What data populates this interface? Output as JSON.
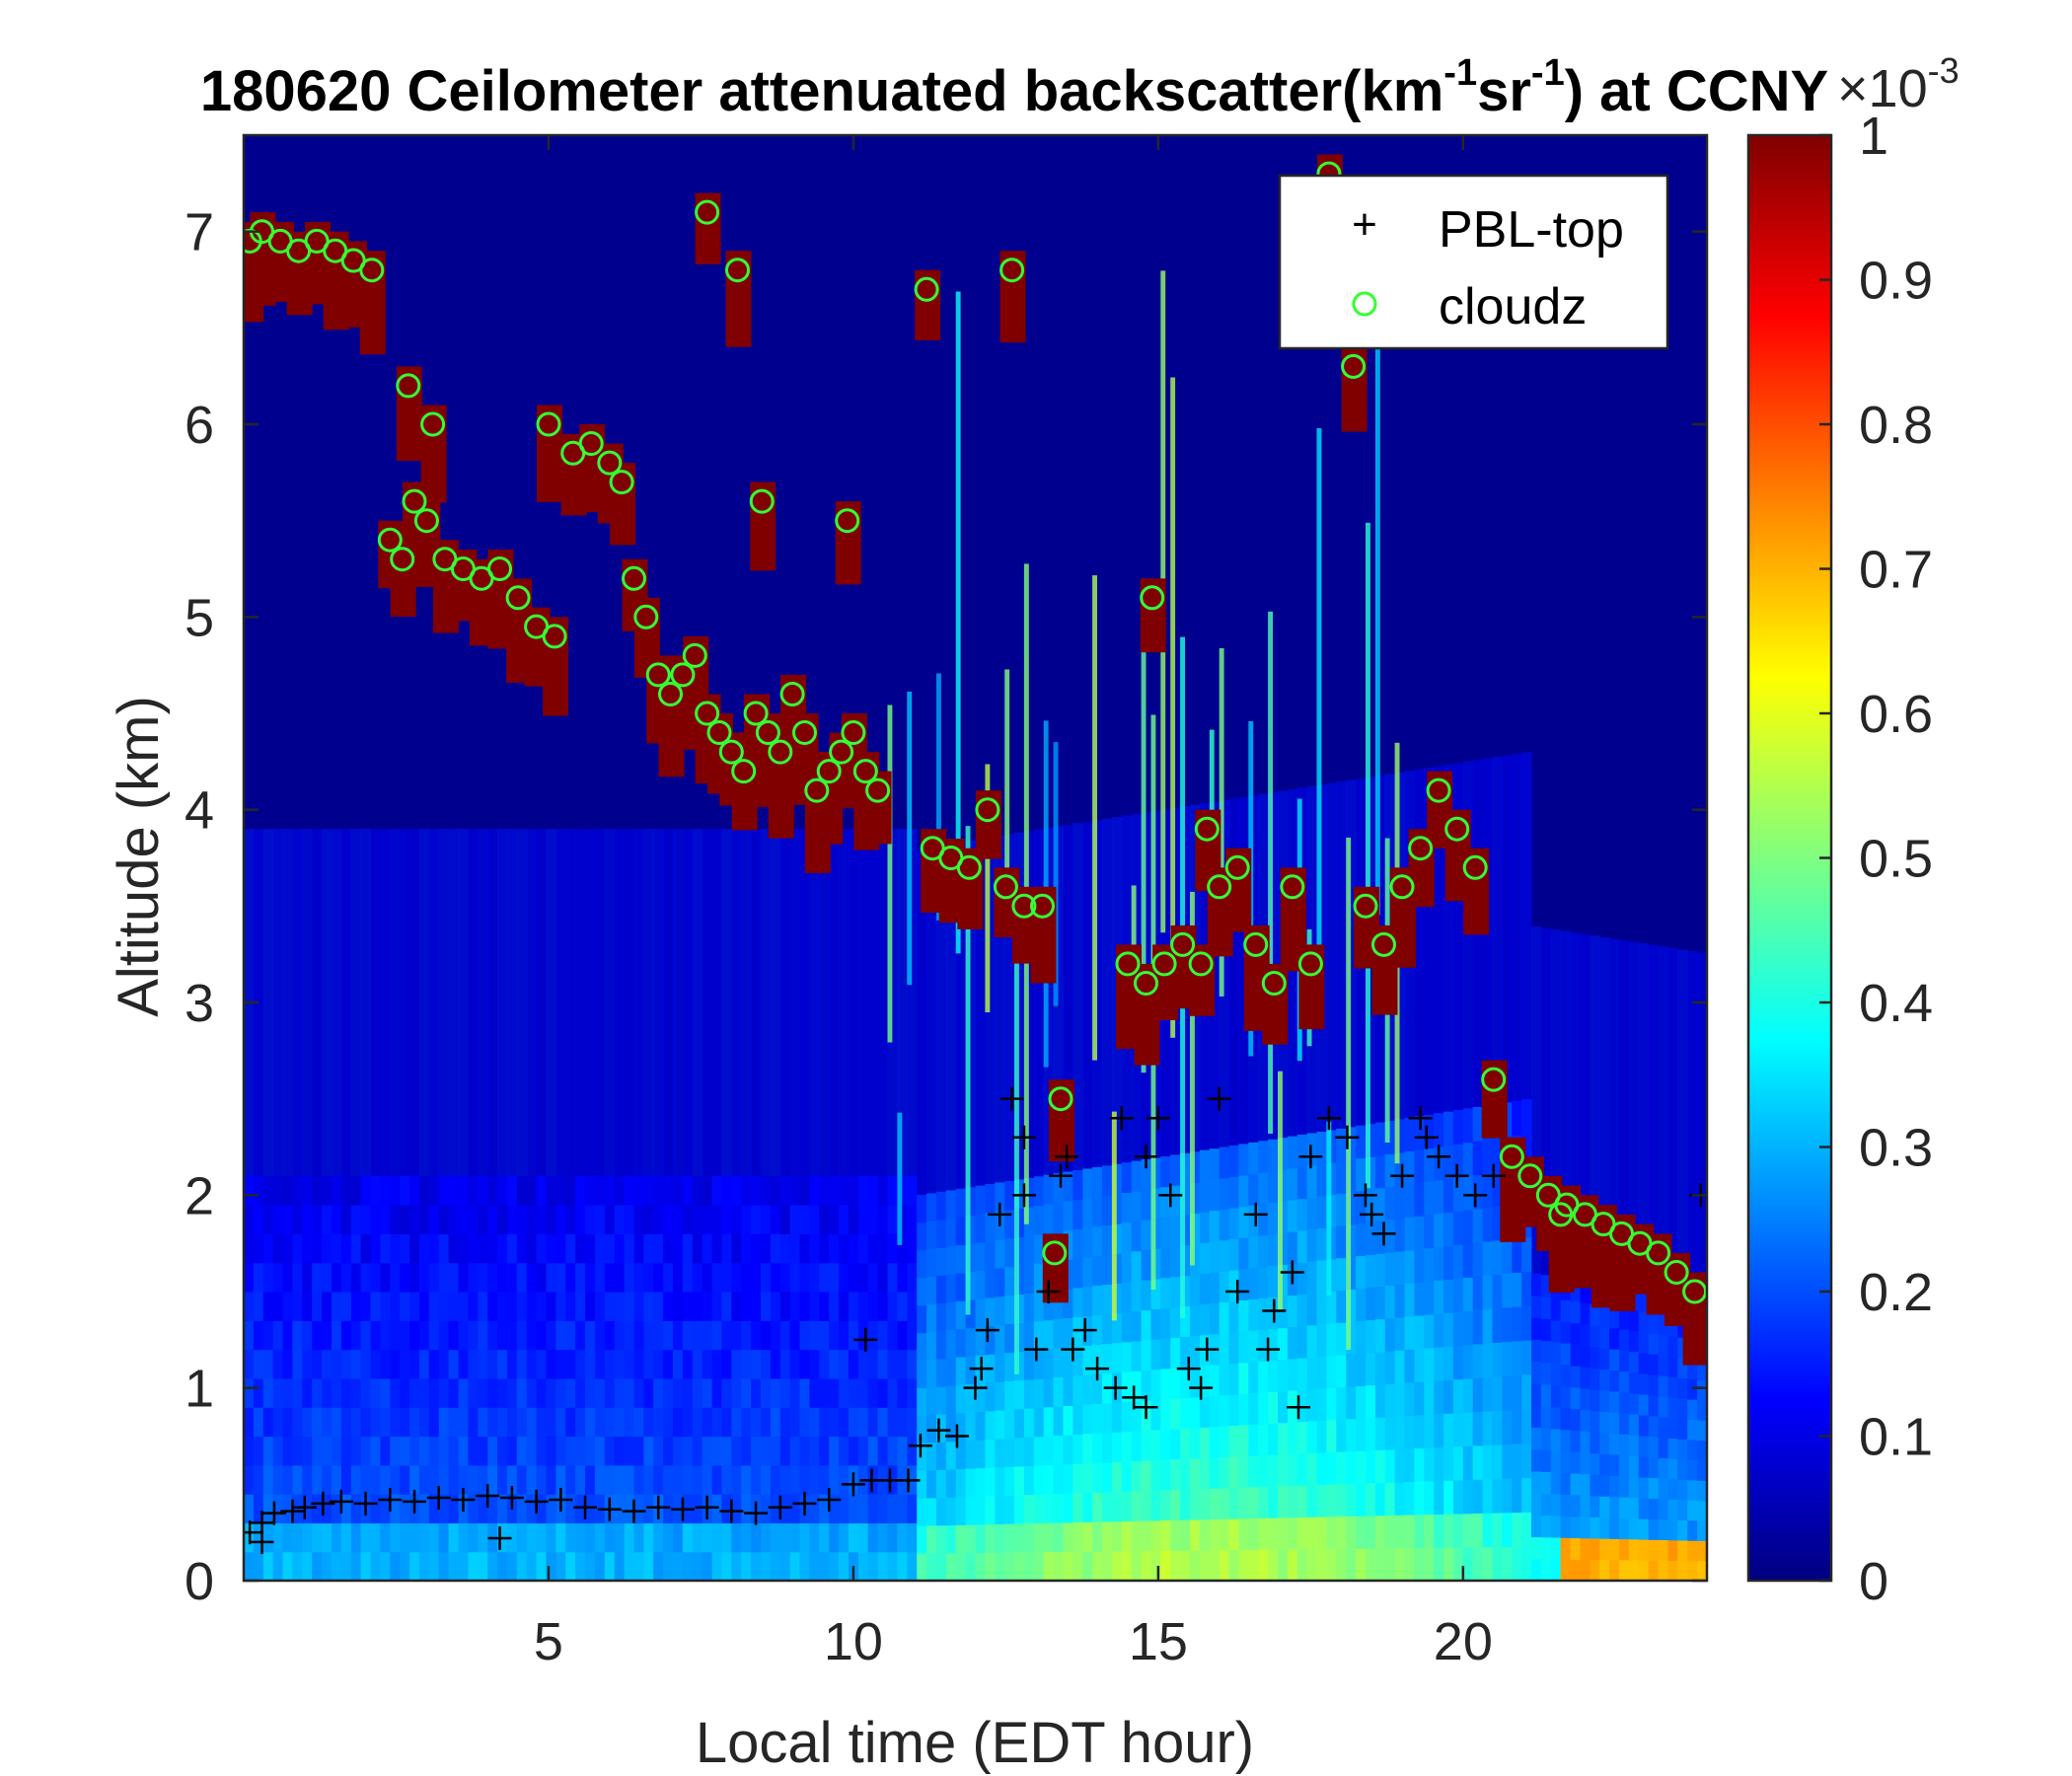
{
  "chart_data": {
    "type": "heatmap",
    "title": "180620 Ceilometer attenuated backscatter(km-1sr-1) at CCNY",
    "title_parts": {
      "main": "180620 Ceilometer attenuated backscatter(km",
      "sup1": "-1",
      "mid": "sr",
      "sup2": "-1",
      "tail": ") at CCNY"
    },
    "xlabel": "Local time (EDT hour)",
    "ylabel": "Altitude (km)",
    "xlim": [
      0,
      24
    ],
    "ylim": [
      0,
      7.5
    ],
    "xticks": [
      5,
      10,
      15,
      20
    ],
    "yticks": [
      0,
      1,
      2,
      3,
      4,
      5,
      6,
      7
    ],
    "colorbar": {
      "colormap": "jet",
      "clim": [
        0,
        1
      ],
      "ticks": [
        0,
        0.1,
        0.2,
        0.3,
        0.4,
        0.5,
        0.6,
        0.7,
        0.8,
        0.9,
        1
      ],
      "exponent_label": "×10",
      "exponent": "-3"
    },
    "legend": {
      "placement": "top-right",
      "entries": [
        {
          "label": "PBL-top",
          "marker": "+",
          "color": "#000000"
        },
        {
          "label": "cloudz",
          "marker": "o",
          "color": "#33ff33"
        }
      ]
    },
    "series": [
      {
        "name": "PBL-top",
        "x": [
          0.1,
          0.3,
          0.5,
          0.8,
          1.0,
          1.3,
          1.6,
          2.0,
          2.4,
          2.8,
          3.2,
          3.6,
          4.0,
          4.4,
          4.8,
          5.2,
          5.6,
          6.0,
          6.4,
          6.8,
          7.2,
          7.6,
          8.0,
          8.4,
          8.8,
          9.2,
          9.6,
          10.0,
          10.3,
          10.6,
          10.9,
          11.1,
          11.4,
          11.7,
          12.0,
          12.2,
          12.4,
          12.6,
          12.8,
          13.0,
          13.2,
          13.4,
          13.6,
          13.8,
          14.0,
          14.3,
          14.6,
          14.8,
          15.0,
          15.2,
          15.5,
          15.8,
          16.0,
          16.3,
          16.6,
          16.9,
          17.2,
          17.5,
          17.8,
          18.1,
          18.4,
          18.7,
          19.0,
          19.3,
          19.6,
          19.9,
          20.2,
          0.3,
          4.2,
          10.2,
          12.1,
          12.8,
          13.5,
          14.4,
          14.8,
          15.7,
          16.8,
          17.3,
          18.5,
          19.4,
          20.5,
          23.9
        ],
        "y": [
          0.25,
          0.3,
          0.35,
          0.36,
          0.38,
          0.4,
          0.41,
          0.4,
          0.42,
          0.41,
          0.43,
          0.42,
          0.44,
          0.43,
          0.41,
          0.42,
          0.38,
          0.37,
          0.36,
          0.38,
          0.37,
          0.38,
          0.36,
          0.35,
          0.38,
          0.4,
          0.42,
          0.5,
          0.52,
          0.52,
          0.52,
          0.7,
          0.78,
          0.75,
          1.0,
          1.3,
          1.9,
          2.5,
          2.3,
          1.2,
          1.5,
          2.1,
          1.2,
          1.3,
          1.1,
          1.0,
          0.95,
          2.2,
          2.4,
          2.0,
          1.1,
          1.2,
          2.5,
          1.5,
          1.9,
          1.4,
          1.6,
          2.2,
          2.4,
          2.3,
          2.0,
          1.8,
          2.1,
          2.4,
          2.2,
          2.1,
          2.0,
          0.2,
          0.22,
          1.25,
          1.1,
          2.0,
          2.2,
          2.4,
          0.9,
          1.0,
          1.2,
          0.9,
          1.9,
          2.3,
          2.1,
          2.0
        ]
      },
      {
        "name": "cloudz",
        "x": [
          0.1,
          0.3,
          0.6,
          0.9,
          1.2,
          1.5,
          1.8,
          2.1,
          2.4,
          2.6,
          2.8,
          3.0,
          3.3,
          3.6,
          3.9,
          4.2,
          4.5,
          4.8,
          5.1,
          5.4,
          5.7,
          6.0,
          6.2,
          6.4,
          6.6,
          6.8,
          7.0,
          7.2,
          7.4,
          7.6,
          7.8,
          8.0,
          8.2,
          8.4,
          8.6,
          8.8,
          9.0,
          9.2,
          9.4,
          9.6,
          9.8,
          10.0,
          10.2,
          10.4,
          11.3,
          11.6,
          11.9,
          12.2,
          12.5,
          12.8,
          13.1,
          13.4,
          14.5,
          14.8,
          15.1,
          15.4,
          15.7,
          16.0,
          16.3,
          16.6,
          16.9,
          17.2,
          17.5,
          18.4,
          18.7,
          19.0,
          19.3,
          19.6,
          19.9,
          20.2,
          20.5,
          20.8,
          21.1,
          21.4,
          21.7,
          22.0,
          22.3,
          22.6,
          22.9,
          23.2,
          23.5,
          23.8,
          2.7,
          3.1,
          5.0,
          7.6,
          8.1,
          11.2,
          12.6,
          13.3,
          14.9,
          15.8,
          17.8,
          18.2,
          21.6,
          8.5,
          9.9
        ],
        "y": [
          6.95,
          7.0,
          6.95,
          6.9,
          6.95,
          6.9,
          6.85,
          6.8,
          5.4,
          5.3,
          5.6,
          5.5,
          5.3,
          5.25,
          5.2,
          5.25,
          5.1,
          4.95,
          4.9,
          5.85,
          5.9,
          5.8,
          5.7,
          5.2,
          5.0,
          4.7,
          4.6,
          4.7,
          4.8,
          4.5,
          4.4,
          4.3,
          4.2,
          4.5,
          4.4,
          4.3,
          4.6,
          4.4,
          4.1,
          4.2,
          4.3,
          4.4,
          4.2,
          4.1,
          3.8,
          3.75,
          3.7,
          4.0,
          3.6,
          3.5,
          3.5,
          2.5,
          3.2,
          3.1,
          3.2,
          3.3,
          3.2,
          3.6,
          3.7,
          3.3,
          3.1,
          3.6,
          3.2,
          3.5,
          3.3,
          3.6,
          3.8,
          4.1,
          3.9,
          3.7,
          2.6,
          2.2,
          2.1,
          2.0,
          1.95,
          1.9,
          1.85,
          1.8,
          1.75,
          1.7,
          1.6,
          1.5,
          6.2,
          6.0,
          6.0,
          7.1,
          6.8,
          6.7,
          6.8,
          1.7,
          5.1,
          3.9,
          7.3,
          6.3,
          1.9,
          5.6,
          5.5
        ]
      }
    ]
  }
}
